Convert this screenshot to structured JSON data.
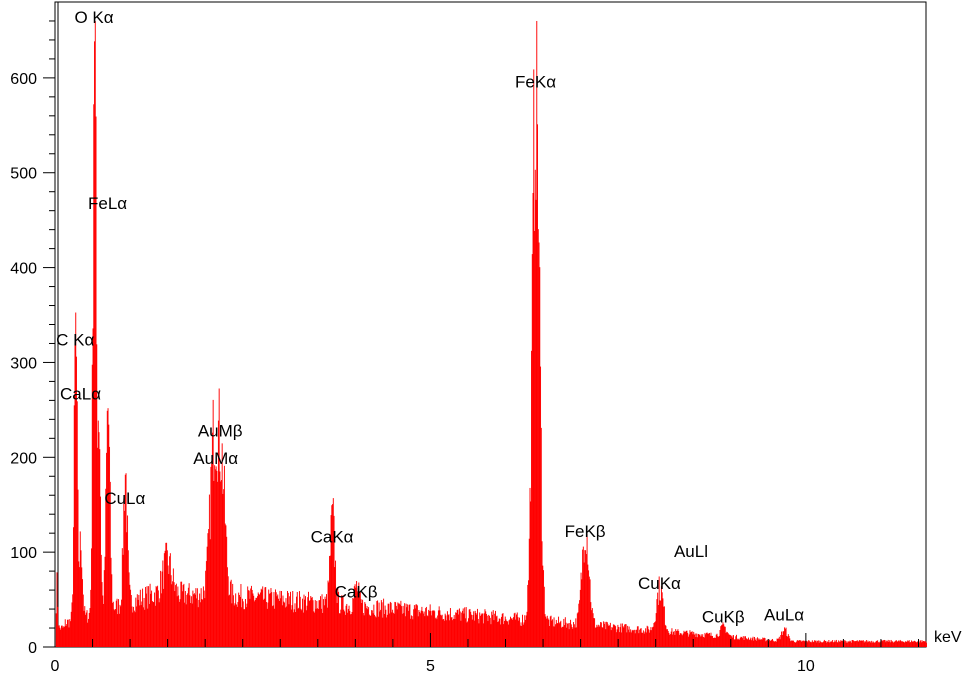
{
  "chart_data": {
    "type": "area",
    "xlabel": "keV",
    "ylabel": "",
    "xlim": [
      0,
      11.6
    ],
    "ylim": [
      0,
      680
    ],
    "x_ticks": [
      {
        "value": 0,
        "label": "0"
      },
      {
        "value": 5,
        "label": "5"
      },
      {
        "value": 10,
        "label": "10"
      }
    ],
    "y_ticks": [
      {
        "value": 0,
        "label": "0"
      },
      {
        "value": 100,
        "label": "100"
      },
      {
        "value": 200,
        "label": "200"
      },
      {
        "value": 300,
        "label": "300"
      },
      {
        "value": 400,
        "label": "400"
      },
      {
        "value": 500,
        "label": "500"
      },
      {
        "value": 600,
        "label": "600"
      }
    ],
    "fill_color": "#ff0000",
    "peaks": [
      {
        "center": 0.02,
        "height": 45,
        "width": 0.01
      },
      {
        "center": 0.27,
        "height": 300,
        "width": 0.02
      },
      {
        "center": 0.34,
        "height": 80,
        "width": 0.02
      },
      {
        "center": 0.52,
        "height": 655,
        "width": 0.02
      },
      {
        "center": 0.58,
        "height": 210,
        "width": 0.02
      },
      {
        "center": 0.7,
        "height": 210,
        "width": 0.025
      },
      {
        "center": 0.93,
        "height": 140,
        "width": 0.025
      },
      {
        "center": 1.49,
        "height": 35,
        "width": 0.06
      },
      {
        "center": 2.12,
        "height": 170,
        "width": 0.055
      },
      {
        "center": 2.22,
        "height": 110,
        "width": 0.045
      },
      {
        "center": 3.69,
        "height": 90,
        "width": 0.03
      },
      {
        "center": 4.01,
        "height": 20,
        "width": 0.03
      },
      {
        "center": 6.4,
        "height": 585,
        "width": 0.045
      },
      {
        "center": 7.06,
        "height": 105,
        "width": 0.045
      },
      {
        "center": 8.05,
        "height": 45,
        "width": 0.045
      },
      {
        "center": 8.9,
        "height": 10,
        "width": 0.04
      },
      {
        "center": 9.71,
        "height": 12,
        "width": 0.04
      }
    ],
    "annotations": [
      {
        "text": "O Kα",
        "x": 0.52,
        "y": 658
      },
      {
        "text": "FeLα",
        "x": 0.7,
        "y": 462
      },
      {
        "text": "C Kα",
        "x": 0.27,
        "y": 318
      },
      {
        "text": "CaLα",
        "x": 0.34,
        "y": 261
      },
      {
        "text": "CuLα",
        "x": 0.93,
        "y": 151
      },
      {
        "text": "AuMβ",
        "x": 2.2,
        "y": 222
      },
      {
        "text": "AuMα",
        "x": 2.14,
        "y": 193
      },
      {
        "text": "CaKα",
        "x": 3.69,
        "y": 110
      },
      {
        "text": "CaKβ",
        "x": 4.01,
        "y": 52
      },
      {
        "text": "FeKα",
        "x": 6.4,
        "y": 590
      },
      {
        "text": "FeKβ",
        "x": 7.06,
        "y": 116
      },
      {
        "text": "AuLl",
        "x": 8.47,
        "y": 95
      },
      {
        "text": "CuKα",
        "x": 8.05,
        "y": 61
      },
      {
        "text": "CuKβ",
        "x": 8.9,
        "y": 26
      },
      {
        "text": "AuLα",
        "x": 9.71,
        "y": 28
      }
    ]
  }
}
